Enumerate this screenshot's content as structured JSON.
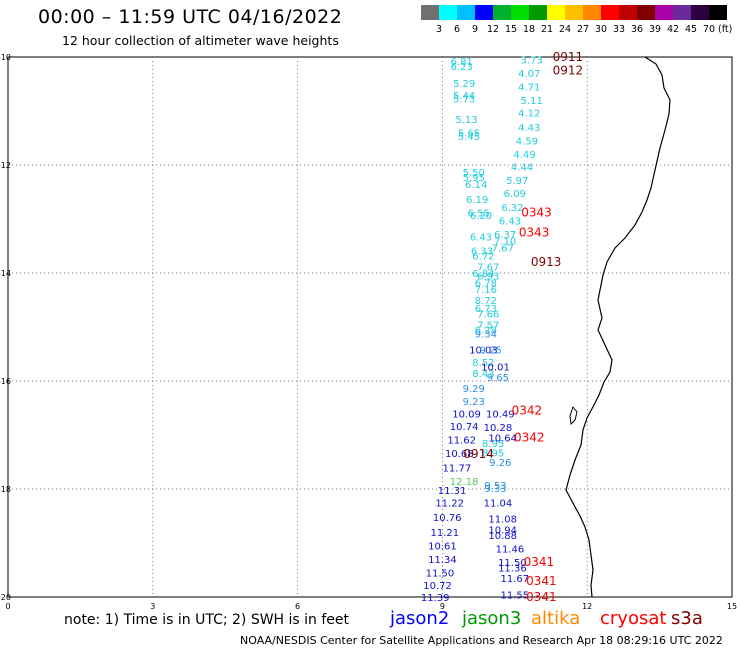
{
  "header": {
    "title": "00:00 – 11:59 UTC 04/16/2022",
    "subtitle": "12 hour collection of altimeter wave heights"
  },
  "colorbar": {
    "colors": [
      "#707070",
      "#00ffff",
      "#00c0ff",
      "#0000ff",
      "#00b030",
      "#00dd00",
      "#009900",
      "#ffff00",
      "#ffc000",
      "#ff8800",
      "#ff0000",
      "#c00000",
      "#800000",
      "#aa00aa",
      "#6a2a9a",
      "#2a0040",
      "#000000"
    ],
    "ticks": [
      "3",
      "6",
      "9",
      "12",
      "15",
      "18",
      "21",
      "24",
      "27",
      "30",
      "33",
      "36",
      "39",
      "42",
      "45",
      "70"
    ],
    "unit": "(ft)"
  },
  "footer": {
    "note": "note: 1) Time is in UTC; 2) SWH is in feet",
    "credit": "NOAA/NESDIS Center for Satellite Applications and Research   Apr 18 08:29:16 UTC 2022"
  },
  "legend": [
    {
      "name": "jason2",
      "color": "#0000ff"
    },
    {
      "name": "jason3",
      "color": "#009900"
    },
    {
      "name": "altika",
      "color": "#ff8800"
    },
    {
      "name": "cryosat",
      "color": "#ff0000"
    },
    {
      "name": "s3a",
      "color": "#800000"
    }
  ],
  "chart_data": {
    "type": "scatter",
    "xlim": [
      0,
      15
    ],
    "ylim": [
      -20,
      -10
    ],
    "x_ticks": [
      "0",
      "3",
      "6",
      "9",
      "12",
      "15"
    ],
    "y_ticks": [
      "-10",
      "-12",
      "-14",
      "-16",
      "-18",
      "-20"
    ],
    "grid": true,
    "series": [
      {
        "name": "jason2",
        "color_by_value": true,
        "points": [
          {
            "x": 9.4,
            "y": -10.07,
            "v": "6.81"
          },
          {
            "x": 9.4,
            "y": -10.17,
            "v": "6.23"
          },
          {
            "x": 9.45,
            "y": -10.48,
            "v": "5.29"
          },
          {
            "x": 9.45,
            "y": -10.7,
            "v": "5.44"
          },
          {
            "x": 9.45,
            "y": -10.77,
            "v": "5.73"
          },
          {
            "x": 9.5,
            "y": -11.15,
            "v": "5.13"
          },
          {
            "x": 9.55,
            "y": -11.4,
            "v": "5.65"
          },
          {
            "x": 9.55,
            "y": -11.46,
            "v": "5.45"
          },
          {
            "x": 9.65,
            "y": -12.13,
            "v": "5.50"
          },
          {
            "x": 9.65,
            "y": -12.22,
            "v": "5.95"
          },
          {
            "x": 9.7,
            "y": -12.35,
            "v": "6.14"
          },
          {
            "x": 9.72,
            "y": -12.63,
            "v": "6.19"
          },
          {
            "x": 9.75,
            "y": -12.88,
            "v": "6.55"
          },
          {
            "x": 9.8,
            "y": -12.93,
            "v": "6.20"
          },
          {
            "x": 9.8,
            "y": -13.32,
            "v": "6.43"
          },
          {
            "x": 9.82,
            "y": -13.58,
            "v": "6.33"
          },
          {
            "x": 9.85,
            "y": -13.68,
            "v": "6.72"
          },
          {
            "x": 9.95,
            "y": -13.88,
            "v": "7.67"
          },
          {
            "x": 9.85,
            "y": -14.0,
            "v": "6.84"
          },
          {
            "x": 9.95,
            "y": -14.05,
            "v": "6.93"
          },
          {
            "x": 9.9,
            "y": -14.18,
            "v": "6.78"
          },
          {
            "x": 9.9,
            "y": -14.3,
            "v": "7.16"
          },
          {
            "x": 9.9,
            "y": -14.5,
            "v": "8.72"
          },
          {
            "x": 9.9,
            "y": -14.65,
            "v": "6.73"
          },
          {
            "x": 9.95,
            "y": -14.75,
            "v": "7.66"
          },
          {
            "x": 9.95,
            "y": -14.95,
            "v": "7.57"
          },
          {
            "x": 9.9,
            "y": -15.05,
            "v": "6.28"
          },
          {
            "x": 9.9,
            "y": -15.12,
            "v": "9.34"
          },
          {
            "x": 9.85,
            "y": -15.42,
            "v": "10.03"
          },
          {
            "x": 10.0,
            "y": -15.42,
            "v": "9.25"
          },
          {
            "x": 9.85,
            "y": -15.65,
            "v": "8.52"
          },
          {
            "x": 9.85,
            "y": -15.85,
            "v": "8.43"
          },
          {
            "x": 10.1,
            "y": -15.73,
            "v": "10.01"
          },
          {
            "x": 10.15,
            "y": -15.93,
            "v": "9.65"
          },
          {
            "x": 9.65,
            "y": -16.13,
            "v": "9.29"
          },
          {
            "x": 9.65,
            "y": -16.37,
            "v": "9.23"
          },
          {
            "x": 9.5,
            "y": -16.6,
            "v": "10.09"
          },
          {
            "x": 9.45,
            "y": -16.83,
            "v": "10.74"
          },
          {
            "x": 9.4,
            "y": -17.08,
            "v": "11.62"
          },
          {
            "x": 9.35,
            "y": -17.33,
            "v": "10.68"
          },
          {
            "x": 9.3,
            "y": -17.6,
            "v": "11.77"
          },
          {
            "x": 9.2,
            "y": -18.02,
            "v": "11.31"
          },
          {
            "x": 9.15,
            "y": -18.25,
            "v": "11.22"
          },
          {
            "x": 9.1,
            "y": -18.52,
            "v": "10.76"
          },
          {
            "x": 9.05,
            "y": -18.8,
            "v": "11.21"
          },
          {
            "x": 9.0,
            "y": -19.05,
            "v": "10.61"
          },
          {
            "x": 9.0,
            "y": -19.3,
            "v": "11.34"
          },
          {
            "x": 8.95,
            "y": -19.55,
            "v": "11.50"
          },
          {
            "x": 8.9,
            "y": -19.78,
            "v": "10.72"
          },
          {
            "x": 8.85,
            "y": -20.0,
            "v": "11.39"
          }
        ]
      },
      {
        "name": "jason3",
        "color_by_value": true,
        "points": [
          {
            "x": 10.85,
            "y": -10.05,
            "v": "3.73"
          },
          {
            "x": 10.8,
            "y": -10.3,
            "v": "4.07"
          },
          {
            "x": 10.8,
            "y": -10.55,
            "v": "4.71"
          },
          {
            "x": 10.85,
            "y": -10.8,
            "v": "5.11"
          },
          {
            "x": 10.8,
            "y": -11.03,
            "v": "4.12"
          },
          {
            "x": 10.8,
            "y": -11.3,
            "v": "4.43"
          },
          {
            "x": 10.75,
            "y": -11.55,
            "v": "4.59"
          },
          {
            "x": 10.7,
            "y": -11.8,
            "v": "4.49"
          },
          {
            "x": 10.65,
            "y": -12.03,
            "v": "4.44"
          },
          {
            "x": 10.55,
            "y": -12.28,
            "v": "5.97"
          },
          {
            "x": 10.5,
            "y": -12.52,
            "v": "6.09"
          },
          {
            "x": 10.45,
            "y": -12.78,
            "v": "6.32"
          },
          {
            "x": 10.4,
            "y": -13.03,
            "v": "6.43"
          },
          {
            "x": 10.3,
            "y": -13.28,
            "v": "6.37"
          },
          {
            "x": 10.25,
            "y": -13.53,
            "v": "7.67"
          },
          {
            "x": 10.3,
            "y": -13.4,
            "v": "7.10"
          },
          {
            "x": 9.45,
            "y": -17.85,
            "v": "12.18"
          },
          {
            "x": 10.05,
            "y": -17.15,
            "v": "8.95"
          },
          {
            "x": 10.05,
            "y": -17.32,
            "v": "8.95"
          },
          {
            "x": 10.2,
            "y": -16.6,
            "v": "10.49"
          },
          {
            "x": 10.15,
            "y": -16.85,
            "v": "10.28"
          },
          {
            "x": 10.25,
            "y": -17.05,
            "v": "10.64"
          },
          {
            "x": 10.2,
            "y": -17.5,
            "v": "9.26"
          },
          {
            "x": 10.1,
            "y": -17.93,
            "v": "9.53"
          },
          {
            "x": 10.1,
            "y": -17.98,
            "v": "9.33"
          },
          {
            "x": 10.15,
            "y": -18.25,
            "v": "11.04"
          },
          {
            "x": 10.25,
            "y": -18.55,
            "v": "11.08"
          },
          {
            "x": 10.25,
            "y": -18.75,
            "v": "10.94"
          },
          {
            "x": 10.25,
            "y": -18.85,
            "v": "10.88"
          },
          {
            "x": 10.4,
            "y": -19.1,
            "v": "11.46"
          },
          {
            "x": 10.45,
            "y": -19.35,
            "v": "11.50"
          },
          {
            "x": 10.45,
            "y": -19.45,
            "v": "11.36"
          },
          {
            "x": 10.5,
            "y": -19.65,
            "v": "11.67"
          },
          {
            "x": 10.5,
            "y": -19.95,
            "v": "11.55"
          }
        ]
      },
      {
        "name": "cryosat",
        "color": "#ff0000",
        "points": [
          {
            "x": 10.95,
            "y": -12.88,
            "v": "0343"
          },
          {
            "x": 10.9,
            "y": -13.25,
            "v": "0343"
          },
          {
            "x": 10.75,
            "y": -16.55,
            "v": "0342"
          },
          {
            "x": 10.8,
            "y": -17.05,
            "v": "0342"
          },
          {
            "x": 11.0,
            "y": -19.35,
            "v": "0341"
          },
          {
            "x": 11.05,
            "y": -19.7,
            "v": "0341"
          },
          {
            "x": 11.05,
            "y": -20.0,
            "v": "0341"
          }
        ]
      },
      {
        "name": "s3a",
        "color": "#800000",
        "points": [
          {
            "x": 11.6,
            "y": -10.0,
            "v": "0911"
          },
          {
            "x": 11.6,
            "y": -10.25,
            "v": "0912"
          },
          {
            "x": 11.15,
            "y": -13.8,
            "v": "0913"
          },
          {
            "x": 9.75,
            "y": -17.35,
            "v": "0914"
          }
        ]
      }
    ]
  }
}
